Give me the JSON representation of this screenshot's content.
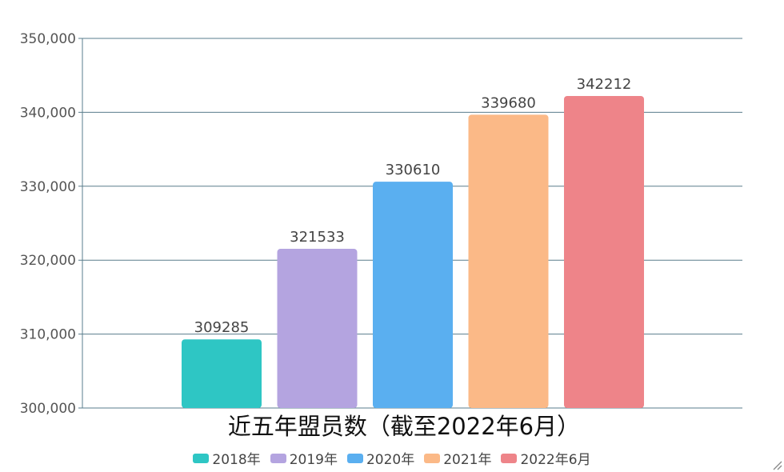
{
  "chart_data": {
    "type": "bar",
    "title": "近五年盟员数（截至2022年6月）",
    "categories": [
      "2018年",
      "2019年",
      "2020年",
      "2021年",
      "2022年6月"
    ],
    "values": [
      309285,
      321533,
      330610,
      339680,
      342212
    ],
    "data_labels": [
      "309285",
      "321533",
      "330610",
      "339680",
      "342212"
    ],
    "colors": [
      "#2ec6c4",
      "#b4a4e0",
      "#5aaff0",
      "#fbb987",
      "#ee8489"
    ],
    "ylim": [
      300000,
      350000
    ],
    "y_ticks": [
      300000,
      310000,
      320000,
      330000,
      340000,
      350000
    ],
    "y_tick_labels": [
      "300,000",
      "310,000",
      "320,000",
      "330,000",
      "340,000",
      "350,000"
    ],
    "xlabel": "",
    "ylabel": "",
    "grid": true,
    "legend_position": "bottom-center"
  }
}
